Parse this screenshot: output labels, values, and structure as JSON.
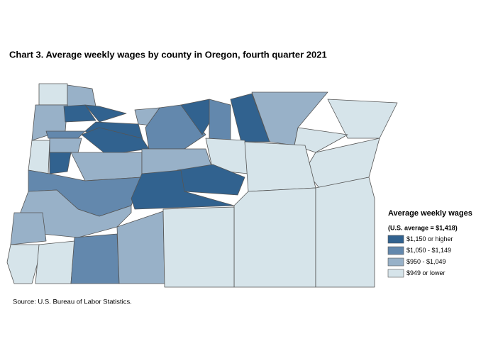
{
  "title": "Chart 3. Average weekly wages by county in Oregon, fourth quarter 2021",
  "legend": {
    "title": "Average weekly wages",
    "subtitle": "(U.S. average = $1,418)",
    "items": [
      {
        "label": "$1,150 or higher",
        "color": "#31628f"
      },
      {
        "label": "$1,050 - $1,149",
        "color": "#6388ad"
      },
      {
        "label": "$950 - $1,049",
        "color": "#98b1c8"
      },
      {
        "label": "$949 or lower",
        "color": "#d6e4ea"
      }
    ]
  },
  "source": "Source: U.S. Bureau of Labor Statistics."
}
